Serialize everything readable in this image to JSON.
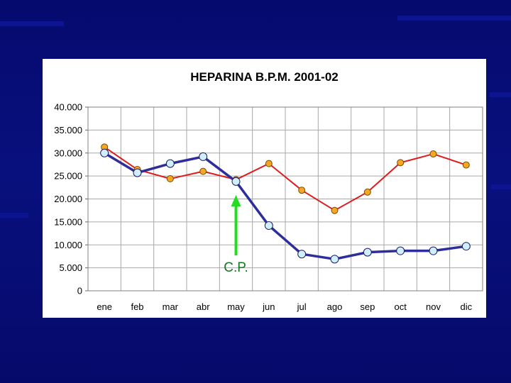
{
  "slide": {
    "background_color": "#07107a"
  },
  "chart_data": {
    "type": "line",
    "title": "HEPARINA B.P.M. 2001-02",
    "categories": [
      "ene",
      "feb",
      "mar",
      "abr",
      "may",
      "jun",
      "jul",
      "ago",
      "sep",
      "oct",
      "nov",
      "dic"
    ],
    "y_ticks": [
      "40.000",
      "35.000",
      "30.000",
      "25.000",
      "20.000",
      "15.000",
      "10.000",
      "5.000",
      "0"
    ],
    "ylim": [
      0,
      40000
    ],
    "grid": true,
    "series": [
      {
        "color": "#dd1c1c",
        "marker_color": "#f5a623",
        "values": [
          31300,
          26400,
          24400,
          26000,
          24200,
          27700,
          21900,
          17500,
          21500,
          27900,
          29800,
          27400
        ]
      },
      {
        "color": "#2e2e9a",
        "marker_color": "#cfefff",
        "values": [
          30000,
          25700,
          27700,
          29200,
          23800,
          14200,
          8000,
          6900,
          8400,
          8700,
          8700,
          9700
        ]
      }
    ],
    "annotations": [
      {
        "label": "C.P.",
        "category": "may",
        "arrow_color": "#22dd22",
        "label_color": "#14781e"
      }
    ]
  }
}
